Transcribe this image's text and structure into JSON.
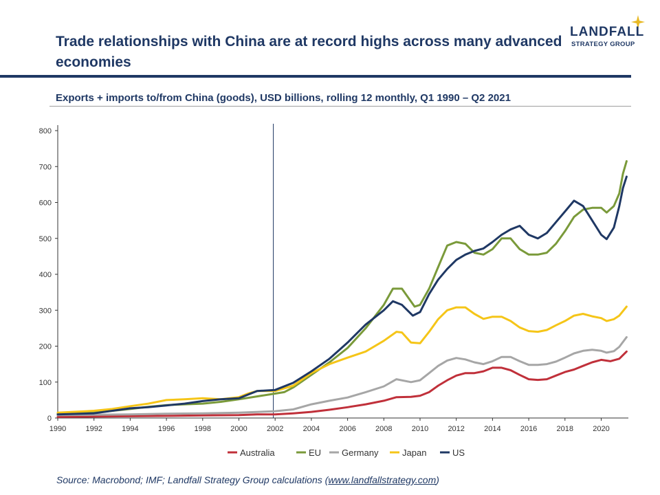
{
  "header": {
    "title": "Trade relationships with China are at record highs across many advanced economies",
    "subtitle": "Exports + imports to/from China (goods), USD billions, rolling 12 monthly, Q1 1990 – Q2 2021",
    "logo_word": "LANDFALL",
    "logo_sub": "STRATEGY GROUP"
  },
  "footer": {
    "source_prefix": "Source: Macrobond; IMF; Landfall Strategy Group calculations (",
    "source_link": "www.landfallstrategy.com",
    "source_suffix": ")"
  },
  "colors": {
    "Australia": "#c0303a",
    "EU": "#7a9a3a",
    "Germany": "#a6a6a6",
    "Japan": "#f5c518",
    "US": "#1f3864",
    "brand": "#1f3864",
    "star": "#e8b923"
  },
  "chart_data": {
    "type": "line",
    "xlim": [
      1990,
      2021.5
    ],
    "ylim": [
      0,
      800
    ],
    "yticks": [
      0,
      100,
      200,
      300,
      400,
      500,
      600,
      700,
      800
    ],
    "xticks": [
      1990,
      1992,
      1994,
      1996,
      1998,
      2000,
      2002,
      2004,
      2006,
      2008,
      2010,
      2012,
      2014,
      2016,
      2018,
      2020
    ],
    "vline_x": 2001.9,
    "legend_position": "bottom-center",
    "grid": false,
    "series": [
      {
        "name": "Australia",
        "points": [
          [
            1990,
            3
          ],
          [
            1992,
            4
          ],
          [
            1994,
            5
          ],
          [
            1996,
            6
          ],
          [
            1998,
            7
          ],
          [
            2000,
            8
          ],
          [
            2001,
            10
          ],
          [
            2002,
            10
          ],
          [
            2003,
            13
          ],
          [
            2004,
            17
          ],
          [
            2005,
            23
          ],
          [
            2006,
            30
          ],
          [
            2007,
            38
          ],
          [
            2008,
            48
          ],
          [
            2008.7,
            58
          ],
          [
            2009.5,
            59
          ],
          [
            2010,
            62
          ],
          [
            2010.5,
            72
          ],
          [
            2011,
            90
          ],
          [
            2011.5,
            105
          ],
          [
            2012,
            118
          ],
          [
            2012.5,
            125
          ],
          [
            2013,
            125
          ],
          [
            2013.5,
            130
          ],
          [
            2014,
            140
          ],
          [
            2014.5,
            140
          ],
          [
            2015,
            133
          ],
          [
            2015.5,
            120
          ],
          [
            2016,
            108
          ],
          [
            2016.5,
            106
          ],
          [
            2017,
            108
          ],
          [
            2017.5,
            118
          ],
          [
            2018,
            128
          ],
          [
            2018.5,
            135
          ],
          [
            2019,
            145
          ],
          [
            2019.5,
            155
          ],
          [
            2020,
            162
          ],
          [
            2020.5,
            158
          ],
          [
            2021,
            165
          ],
          [
            2021.4,
            185
          ]
        ]
      },
      {
        "name": "EU",
        "points": [
          [
            1990,
            12
          ],
          [
            1992,
            15
          ],
          [
            1994,
            25
          ],
          [
            1995,
            31
          ],
          [
            1996,
            36
          ],
          [
            1997,
            38
          ],
          [
            1998,
            40
          ],
          [
            1999,
            45
          ],
          [
            2000,
            52
          ],
          [
            2001,
            60
          ],
          [
            2002,
            68
          ],
          [
            2002.5,
            72
          ],
          [
            2003,
            85
          ],
          [
            2004,
            120
          ],
          [
            2005,
            155
          ],
          [
            2006,
            195
          ],
          [
            2007,
            250
          ],
          [
            2008,
            315
          ],
          [
            2008.5,
            360
          ],
          [
            2009,
            360
          ],
          [
            2009.7,
            310
          ],
          [
            2010,
            315
          ],
          [
            2010.5,
            360
          ],
          [
            2011,
            420
          ],
          [
            2011.5,
            480
          ],
          [
            2012,
            490
          ],
          [
            2012.5,
            485
          ],
          [
            2013,
            460
          ],
          [
            2013.5,
            455
          ],
          [
            2014,
            470
          ],
          [
            2014.5,
            500
          ],
          [
            2015,
            500
          ],
          [
            2015.5,
            470
          ],
          [
            2016,
            455
          ],
          [
            2016.5,
            455
          ],
          [
            2017,
            460
          ],
          [
            2017.5,
            485
          ],
          [
            2018,
            520
          ],
          [
            2018.5,
            560
          ],
          [
            2019,
            580
          ],
          [
            2019.5,
            585
          ],
          [
            2020,
            585
          ],
          [
            2020.3,
            572
          ],
          [
            2020.7,
            590
          ],
          [
            2021,
            625
          ],
          [
            2021.2,
            680
          ],
          [
            2021.4,
            715
          ]
        ]
      },
      {
        "name": "Germany",
        "points": [
          [
            1990,
            8
          ],
          [
            1992,
            9
          ],
          [
            1994,
            10
          ],
          [
            1996,
            12
          ],
          [
            1998,
            13
          ],
          [
            2000,
            15
          ],
          [
            2002,
            19
          ],
          [
            2003,
            24
          ],
          [
            2004,
            38
          ],
          [
            2005,
            48
          ],
          [
            2006,
            57
          ],
          [
            2007,
            72
          ],
          [
            2008,
            88
          ],
          [
            2008.7,
            108
          ],
          [
            2009.5,
            100
          ],
          [
            2010,
            105
          ],
          [
            2010.5,
            125
          ],
          [
            2011,
            145
          ],
          [
            2011.5,
            160
          ],
          [
            2012,
            167
          ],
          [
            2012.5,
            163
          ],
          [
            2013,
            155
          ],
          [
            2013.5,
            150
          ],
          [
            2014,
            158
          ],
          [
            2014.5,
            170
          ],
          [
            2015,
            170
          ],
          [
            2015.5,
            158
          ],
          [
            2016,
            148
          ],
          [
            2016.5,
            148
          ],
          [
            2017,
            150
          ],
          [
            2017.5,
            157
          ],
          [
            2018,
            168
          ],
          [
            2018.5,
            180
          ],
          [
            2019,
            187
          ],
          [
            2019.5,
            190
          ],
          [
            2020,
            187
          ],
          [
            2020.3,
            182
          ],
          [
            2020.7,
            186
          ],
          [
            2021,
            198
          ],
          [
            2021.4,
            225
          ]
        ]
      },
      {
        "name": "Japan",
        "points": [
          [
            1990,
            15
          ],
          [
            1992,
            20
          ],
          [
            1993,
            25
          ],
          [
            1994,
            33
          ],
          [
            1995,
            40
          ],
          [
            1996,
            50
          ],
          [
            1997,
            52
          ],
          [
            1998,
            55
          ],
          [
            1999,
            52
          ],
          [
            2000,
            58
          ],
          [
            2000.5,
            68
          ],
          [
            2001,
            75
          ],
          [
            2002,
            75
          ],
          [
            2003,
            90
          ],
          [
            2004,
            125
          ],
          [
            2005,
            150
          ],
          [
            2006,
            168
          ],
          [
            2007,
            185
          ],
          [
            2008,
            215
          ],
          [
            2008.7,
            240
          ],
          [
            2009,
            238
          ],
          [
            2009.5,
            210
          ],
          [
            2010,
            208
          ],
          [
            2010.5,
            240
          ],
          [
            2011,
            275
          ],
          [
            2011.5,
            300
          ],
          [
            2012,
            308
          ],
          [
            2012.5,
            308
          ],
          [
            2013,
            290
          ],
          [
            2013.5,
            276
          ],
          [
            2014,
            282
          ],
          [
            2014.5,
            282
          ],
          [
            2015,
            270
          ],
          [
            2015.5,
            252
          ],
          [
            2016,
            242
          ],
          [
            2016.5,
            240
          ],
          [
            2017,
            245
          ],
          [
            2017.5,
            258
          ],
          [
            2018,
            270
          ],
          [
            2018.5,
            285
          ],
          [
            2019,
            290
          ],
          [
            2019.5,
            283
          ],
          [
            2020,
            278
          ],
          [
            2020.3,
            270
          ],
          [
            2020.7,
            275
          ],
          [
            2021,
            285
          ],
          [
            2021.4,
            310
          ]
        ]
      },
      {
        "name": "US",
        "points": [
          [
            1990,
            10
          ],
          [
            1992,
            13
          ],
          [
            1994,
            27
          ],
          [
            1995,
            30
          ],
          [
            1996,
            35
          ],
          [
            1997,
            40
          ],
          [
            1998,
            47
          ],
          [
            1999,
            52
          ],
          [
            2000,
            55
          ],
          [
            2000.5,
            65
          ],
          [
            2001,
            75
          ],
          [
            2002,
            78
          ],
          [
            2003,
            98
          ],
          [
            2004,
            130
          ],
          [
            2005,
            165
          ],
          [
            2006,
            210
          ],
          [
            2007,
            260
          ],
          [
            2008,
            300
          ],
          [
            2008.5,
            325
          ],
          [
            2009,
            315
          ],
          [
            2009.6,
            285
          ],
          [
            2010,
            295
          ],
          [
            2010.5,
            345
          ],
          [
            2011,
            385
          ],
          [
            2011.5,
            415
          ],
          [
            2012,
            440
          ],
          [
            2012.5,
            455
          ],
          [
            2013,
            465
          ],
          [
            2013.5,
            472
          ],
          [
            2014,
            490
          ],
          [
            2014.5,
            510
          ],
          [
            2015,
            525
          ],
          [
            2015.5,
            535
          ],
          [
            2016,
            510
          ],
          [
            2016.5,
            500
          ],
          [
            2017,
            515
          ],
          [
            2017.5,
            545
          ],
          [
            2018,
            575
          ],
          [
            2018.5,
            605
          ],
          [
            2019,
            590
          ],
          [
            2019.5,
            550
          ],
          [
            2020,
            510
          ],
          [
            2020.3,
            498
          ],
          [
            2020.7,
            530
          ],
          [
            2021,
            590
          ],
          [
            2021.2,
            640
          ],
          [
            2021.4,
            672
          ]
        ]
      }
    ]
  }
}
